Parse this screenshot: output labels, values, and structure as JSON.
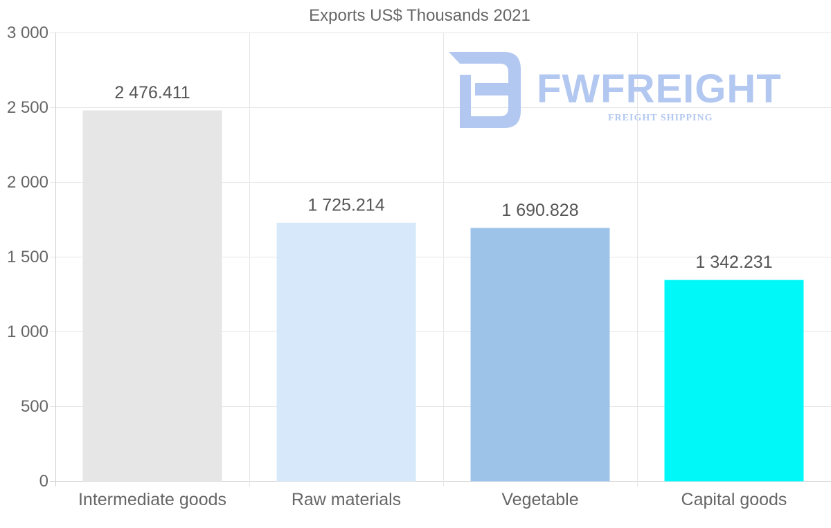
{
  "chart_data": {
    "type": "bar",
    "title": "Exports US$ Thousands 2021",
    "categories": [
      "Intermediate goods",
      "Raw materials",
      "Vegetable",
      "Capital goods"
    ],
    "values": [
      2476.411,
      1725.214,
      1690.828,
      1342.231
    ],
    "value_labels": [
      "2 476.411",
      "1 725.214",
      "1 690.828",
      "1 342.231"
    ],
    "bar_colors": [
      "#e6e6e6",
      "#d6e8fa",
      "#9dc4e8",
      "#00f8f8"
    ],
    "ylim": [
      0,
      3000
    ],
    "yticks": [
      0,
      500,
      1000,
      1500,
      2000,
      2500,
      3000
    ],
    "ytick_labels": [
      "0",
      "500",
      "1 000",
      "1 500",
      "2 000",
      "2 500",
      "3 000"
    ],
    "xlabel": "",
    "ylabel": "",
    "grid": true,
    "legend": "none"
  },
  "watermark": {
    "brand": "FWFREIGHT",
    "tagline": "FREIGHT SHIPPING",
    "color": "#b3c8f0"
  }
}
